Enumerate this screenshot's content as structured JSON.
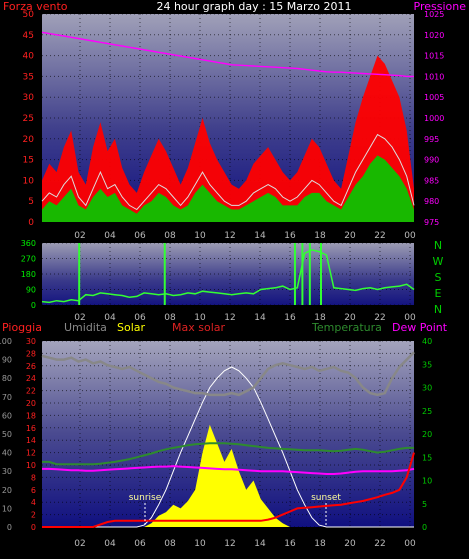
{
  "title": "24 hour graph day : 15 Marzo 2011",
  "colors": {
    "wind": "#ff2020",
    "gust_band": "#ff0000",
    "avg_wind": "#dddddd",
    "green": "#00cc00",
    "pressure": "#ff00ff",
    "humidity": "#888888",
    "solar": "#ffff00",
    "max_solar": "#ffffff",
    "temperature": "#2e8b2e",
    "dewpoint": "#ff00ff",
    "rain": "#ff0000"
  },
  "x_ticks": [
    "02",
    "04",
    "06",
    "08",
    "10",
    "12",
    "14",
    "16",
    "18",
    "20",
    "22",
    "00"
  ],
  "chart_data": [
    {
      "type": "line",
      "panel": "wind",
      "left_axis_label": "Forza vento",
      "right_axis_label": "Pressione",
      "left_ticks": [
        0,
        5,
        10,
        15,
        20,
        25,
        30,
        35,
        40,
        45,
        50
      ],
      "right_ticks": [
        975,
        980,
        985,
        990,
        995,
        1000,
        1005,
        1010,
        1015,
        1020,
        1025
      ],
      "series": [
        {
          "key": "gust",
          "role": "gust",
          "values": [
            10,
            14,
            12,
            18,
            22,
            12,
            9,
            18,
            24,
            17,
            20,
            13,
            9,
            7,
            12,
            16,
            20,
            17,
            13,
            9,
            13,
            19,
            25,
            19,
            15,
            12,
            9,
            8,
            10,
            14,
            16,
            18,
            15,
            12,
            10,
            12,
            16,
            20,
            18,
            14,
            10,
            8,
            16,
            24,
            30,
            35,
            40,
            38,
            34,
            30,
            22,
            8
          ]
        },
        {
          "key": "avg",
          "role": "avg",
          "values": [
            5,
            7,
            6,
            9,
            11,
            6,
            4,
            8,
            12,
            8,
            9,
            6,
            4,
            3,
            5,
            7,
            9,
            8,
            6,
            4,
            6,
            9,
            12,
            9,
            7,
            5,
            4,
            4,
            5,
            7,
            8,
            9,
            8,
            6,
            5,
            6,
            8,
            10,
            9,
            7,
            5,
            4,
            8,
            12,
            15,
            18,
            21,
            20,
            18,
            15,
            11,
            4
          ]
        },
        {
          "key": "green",
          "role": "green",
          "values": [
            3,
            5,
            4,
            6,
            8,
            4,
            3,
            6,
            8,
            6,
            7,
            4,
            3,
            2,
            4,
            5,
            7,
            6,
            4,
            3,
            4,
            7,
            9,
            7,
            5,
            4,
            3,
            3,
            4,
            5,
            6,
            7,
            6,
            4,
            4,
            4,
            6,
            7,
            7,
            5,
            4,
            3,
            6,
            9,
            11,
            14,
            16,
            15,
            13,
            11,
            8,
            3
          ]
        },
        {
          "key": "pressure",
          "role": "pressure",
          "values": [
            1020.6,
            1020.3,
            1020,
            1019.7,
            1019.4,
            1019.1,
            1018.8,
            1018.5,
            1018.2,
            1017.9,
            1017.6,
            1017.3,
            1017,
            1016.7,
            1016.4,
            1016.1,
            1015.8,
            1015.5,
            1015.2,
            1014.9,
            1014.6,
            1014.3,
            1014,
            1013.7,
            1013.4,
            1013.1,
            1012.8,
            1012.7,
            1012.6,
            1012.5,
            1012.4,
            1012.3,
            1012.2,
            1012.1,
            1012,
            1011.9,
            1011.7,
            1011.5,
            1011.3,
            1011.1,
            1011,
            1011,
            1010.9,
            1010.8,
            1010.7,
            1010.6,
            1010.5,
            1010.4,
            1010.3,
            1010.2,
            1010,
            1010
          ]
        }
      ]
    },
    {
      "type": "line",
      "panel": "direction",
      "ticks": [
        0,
        90,
        180,
        270,
        360
      ],
      "compass": [
        "N",
        "W",
        "S",
        "E",
        "N"
      ],
      "series": [
        {
          "key": "direction",
          "values": [
            20,
            15,
            25,
            20,
            30,
            25,
            60,
            55,
            70,
            65,
            60,
            55,
            45,
            50,
            70,
            65,
            60,
            65,
            55,
            60,
            70,
            65,
            80,
            75,
            70,
            65,
            60,
            65,
            70,
            65,
            90,
            95,
            100,
            110,
            90,
            100,
            300,
            320,
            310,
            290,
            100,
            95,
            90,
            85,
            95,
            100,
            90,
            100,
            105,
            110,
            120,
            90
          ]
        }
      ]
    },
    {
      "type": "line",
      "panel": "bottom",
      "labels": {
        "rain": "Pioggia",
        "humidity": "Umidita",
        "solar": "Solar",
        "max_solar": "Max solar",
        "temperature": "Temperatura",
        "dewpoint": "Dew Point"
      },
      "left_ticks_percent": [
        0,
        10,
        20,
        30,
        40,
        50,
        60,
        70,
        80,
        90,
        100
      ],
      "left_ticks_rain": [
        0,
        2,
        4,
        6,
        8,
        10,
        12,
        14,
        16,
        18,
        20,
        22,
        24,
        26,
        28,
        30
      ],
      "right_ticks": [
        0,
        5,
        10,
        15,
        20,
        25,
        30,
        35,
        40
      ],
      "annotations": [
        "sunrise",
        "sunset"
      ],
      "series": [
        {
          "key": "humidity",
          "values": [
            92,
            91,
            90,
            90,
            91,
            89,
            90,
            88,
            89,
            87,
            86,
            85,
            86,
            84,
            82,
            80,
            78,
            77,
            75,
            74,
            73,
            72,
            72,
            71,
            71,
            71,
            72,
            71,
            73,
            75,
            80,
            85,
            87,
            88,
            87,
            86,
            85,
            86,
            84,
            85,
            86,
            84,
            83,
            80,
            75,
            72,
            71,
            72,
            80,
            86,
            90,
            94
          ]
        },
        {
          "key": "temperature",
          "values": [
            14,
            14,
            13.5,
            13.5,
            13.5,
            13.5,
            13.5,
            13.5,
            13.6,
            13.8,
            14,
            14.3,
            14.6,
            15,
            15.4,
            15.8,
            16.3,
            16.7,
            17,
            17.3,
            17.6,
            17.8,
            17.9,
            18,
            18,
            18,
            17.9,
            17.8,
            17.6,
            17.4,
            17.2,
            17,
            16.9,
            16.8,
            16.7,
            16.6,
            16.5,
            16.5,
            16.5,
            16.4,
            16.3,
            16.4,
            16.6,
            16.8,
            16.6,
            16.3,
            16,
            16.2,
            16.5,
            16.8,
            17,
            17
          ]
        },
        {
          "key": "dewpoint",
          "values": [
            12.5,
            12.5,
            12.4,
            12.3,
            12.2,
            12.2,
            12.1,
            12.1,
            12.2,
            12.3,
            12.4,
            12.5,
            12.6,
            12.7,
            12.8,
            12.9,
            13,
            13,
            13.1,
            13,
            12.9,
            12.8,
            12.7,
            12.6,
            12.5,
            12.4,
            12.4,
            12.3,
            12.2,
            12.1,
            12,
            12,
            12,
            12,
            11.9,
            11.8,
            11.7,
            11.6,
            11.5,
            11.4,
            11.4,
            11.5,
            11.7,
            11.9,
            12,
            12,
            12,
            12,
            12,
            12.1,
            12.2,
            12.5
          ]
        },
        {
          "key": "solar",
          "values": [
            0,
            0,
            0,
            0,
            0,
            0,
            0,
            0,
            0,
            0,
            0,
            0,
            0,
            0,
            0,
            2,
            6,
            8,
            12,
            10,
            14,
            20,
            40,
            55,
            45,
            35,
            42,
            30,
            20,
            25,
            15,
            10,
            5,
            2,
            0,
            0,
            0,
            0,
            0,
            0,
            0,
            0,
            0,
            0,
            0,
            0,
            0,
            0,
            0,
            0,
            0,
            0
          ]
        },
        {
          "key": "max_solar",
          "values": [
            0,
            0,
            0,
            0,
            0,
            0,
            0,
            0,
            0,
            0,
            0,
            0,
            0,
            0,
            1,
            5,
            12,
            20,
            30,
            40,
            49,
            58,
            67,
            75,
            80,
            84,
            86,
            84,
            80,
            75,
            67,
            58,
            49,
            40,
            30,
            20,
            12,
            5,
            1,
            0,
            0,
            0,
            0,
            0,
            0,
            0,
            0,
            0,
            0,
            0,
            0,
            0
          ]
        },
        {
          "key": "rain",
          "values": [
            0,
            0,
            0,
            0,
            0,
            0,
            0,
            0,
            0.4,
            0.8,
            1,
            1,
            1,
            1,
            1,
            1,
            1,
            1,
            1,
            1,
            1,
            1,
            1,
            1,
            1,
            1,
            1,
            1,
            1,
            1,
            1,
            1.2,
            1.5,
            2,
            2.5,
            3,
            3.1,
            3.2,
            3.3,
            3.4,
            3.5,
            3.6,
            3.8,
            4,
            4.2,
            4.5,
            4.8,
            5.2,
            5.5,
            6,
            8,
            12
          ]
        }
      ]
    }
  ]
}
